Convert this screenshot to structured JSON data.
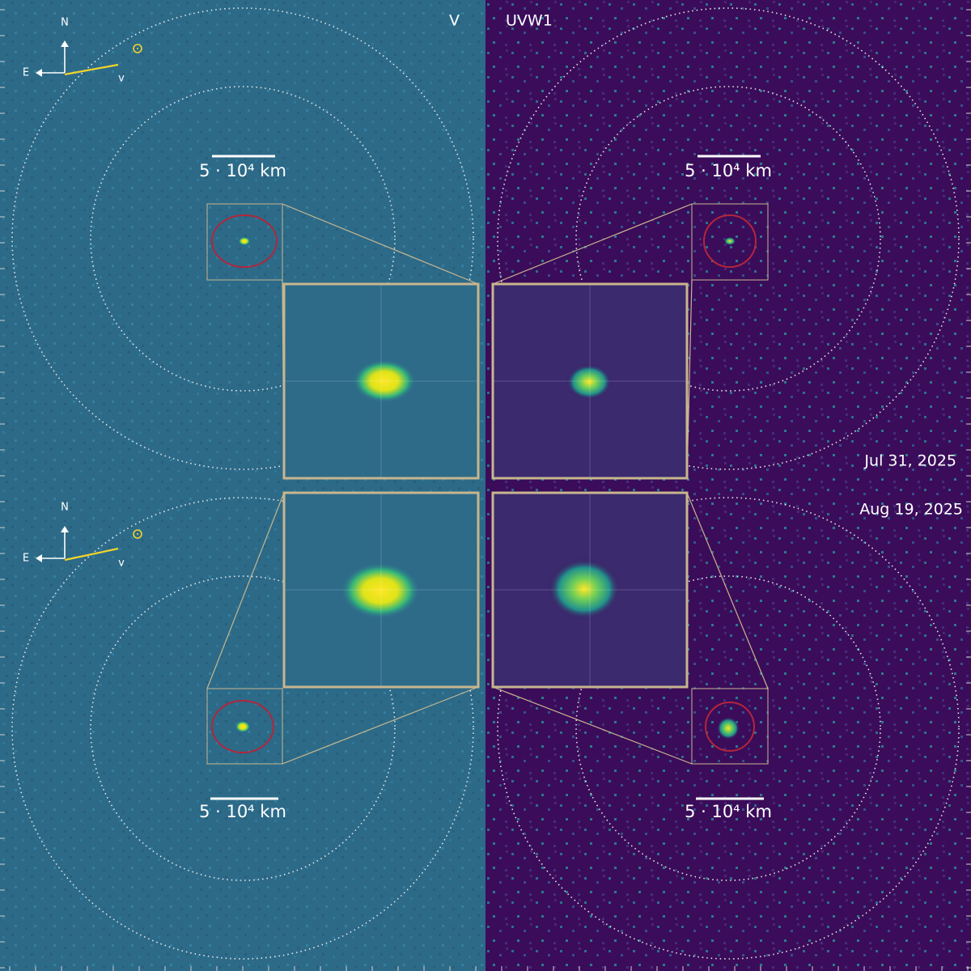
{
  "panels": [
    {
      "filter": "V"
    },
    {
      "filter": "UVW1"
    }
  ],
  "dates": [
    "Jul 31, 2025",
    "Aug 19, 2025"
  ],
  "compass": [
    {
      "north": "N",
      "east": "E",
      "velocity": "v"
    },
    {
      "north": "N",
      "east": "E",
      "velocity": "v"
    }
  ],
  "scale_bars": [
    "5 · 10⁴ km",
    "5 · 10⁴ km",
    "5 · 10⁴ km",
    "5 · 10⁴ km"
  ]
}
